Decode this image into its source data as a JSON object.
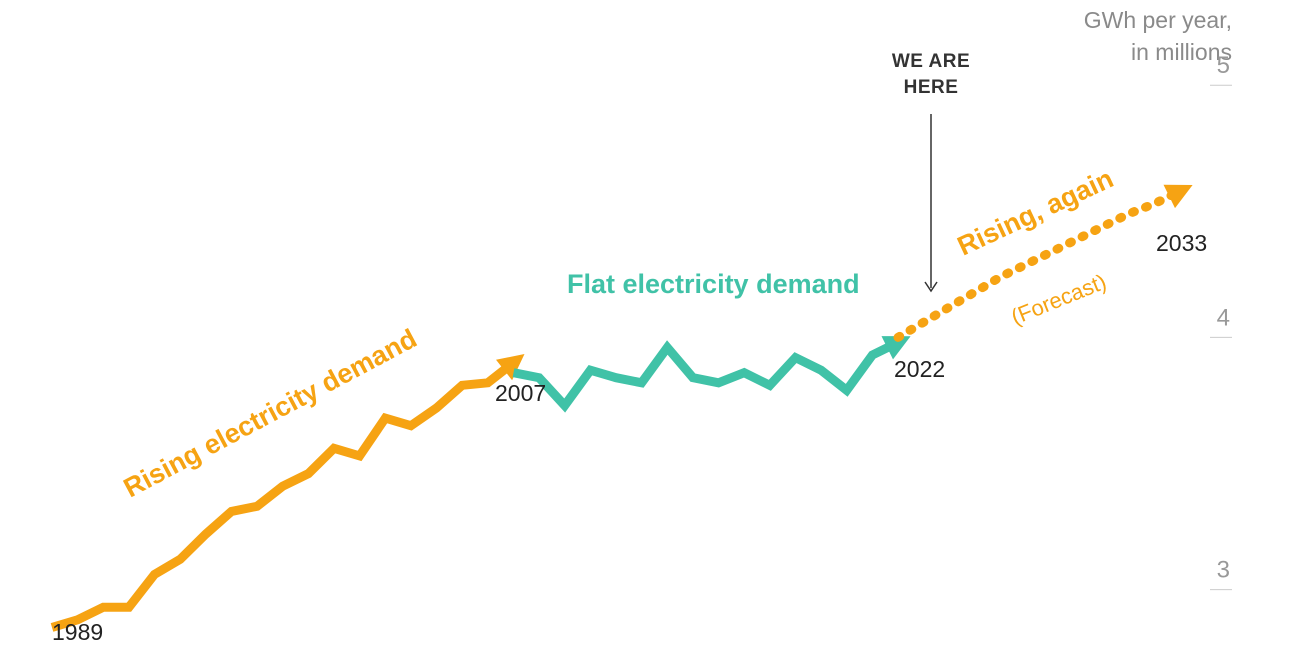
{
  "chart_data": {
    "type": "line",
    "title": "",
    "unit_label_line1": "GWh per year,",
    "unit_label_line2": "in millions",
    "ylim": [
      2.8,
      5.1
    ],
    "y_ticks": [
      {
        "value": 5,
        "label": "5"
      },
      {
        "value": 4,
        "label": "4"
      },
      {
        "value": 3,
        "label": "3"
      }
    ],
    "colors": {
      "rising": "#F6A313",
      "flat": "#40C2A7",
      "forecast": "#F6A313",
      "text": "#222222",
      "tick": "#999999"
    },
    "series": [
      {
        "name": "Rising electricity demand",
        "label": "Rising electricity demand",
        "x": [
          1989,
          1990,
          1991,
          1992,
          1993,
          1994,
          1995,
          1996,
          1997,
          1998,
          1999,
          2000,
          2001,
          2002,
          2003,
          2004,
          2005,
          2006,
          2007
        ],
        "values": [
          2.85,
          2.88,
          2.93,
          2.93,
          3.06,
          3.12,
          3.22,
          3.31,
          3.33,
          3.41,
          3.46,
          3.56,
          3.53,
          3.68,
          3.65,
          3.72,
          3.81,
          3.82,
          3.9
        ]
      },
      {
        "name": "Flat electricity demand",
        "label": "Flat electricity demand",
        "x": [
          2007,
          2008,
          2009,
          2010,
          2011,
          2012,
          2013,
          2014,
          2015,
          2016,
          2017,
          2018,
          2019,
          2020,
          2021,
          2022
        ],
        "values": [
          3.86,
          3.84,
          3.73,
          3.87,
          3.84,
          3.82,
          3.96,
          3.84,
          3.82,
          3.86,
          3.81,
          3.92,
          3.87,
          3.79,
          3.93,
          3.98
        ]
      },
      {
        "name": "Forecast",
        "label": "Rising, again",
        "sublabel": "(Forecast)",
        "x": [
          2022,
          2023,
          2024,
          2025,
          2026,
          2027,
          2028,
          2029,
          2030,
          2031,
          2032,
          2033
        ],
        "values": [
          4.0,
          4.06,
          4.12,
          4.18,
          4.24,
          4.29,
          4.34,
          4.39,
          4.44,
          4.49,
          4.53,
          4.58
        ]
      }
    ],
    "year_labels": [
      {
        "year": "1989"
      },
      {
        "year": "2007"
      },
      {
        "year": "2022"
      },
      {
        "year": "2033"
      }
    ],
    "annotation": {
      "line1": "WE ARE",
      "line2": "HERE"
    }
  }
}
